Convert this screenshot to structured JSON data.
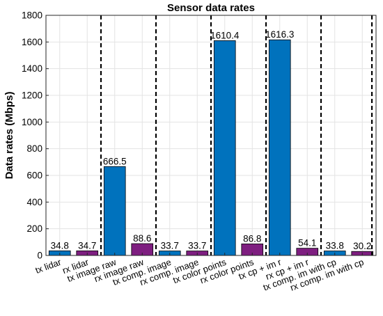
{
  "chart_data": {
    "type": "bar",
    "title": "Sensor data rates",
    "xlabel": "",
    "ylabel": "Data rates (Mbps)",
    "ylim": [
      0,
      1800
    ],
    "yticks": [
      0,
      200,
      400,
      600,
      800,
      1000,
      1200,
      1400,
      1600,
      1800
    ],
    "grid": true,
    "categories": [
      "tx lidar",
      "rx lidar",
      "tx image raw",
      "rx image raw",
      "tx comp. image",
      "rx comp. image",
      "tx color points",
      "rx color points",
      "tx cp + im r",
      "rx cp + im r",
      "tx comp. im with cp",
      "rx comp. im with cp"
    ],
    "values": [
      34.8,
      34.7,
      666.5,
      88.6,
      33.7,
      33.7,
      1610.4,
      86.8,
      1616.3,
      54.1,
      33.8,
      30.2
    ],
    "data_labels": [
      "34.8",
      "34.7",
      "666.5",
      "88.6",
      "33.7",
      "33.7",
      "1610.4",
      "86.8",
      "1616.3",
      "54.1",
      "33.8",
      "30.2"
    ],
    "bar_colors": [
      "#0072BD",
      "#7E1E80",
      "#0072BD",
      "#7E1E80",
      "#0072BD",
      "#7E1E80",
      "#0072BD",
      "#7E1E80",
      "#0072BD",
      "#7E1E80",
      "#0072BD",
      "#7E1E80"
    ],
    "separators_after_categories": [
      "rx lidar",
      "rx image raw",
      "rx comp. image",
      "rx color points",
      "rx cp + im r",
      "rx comp. im with cp"
    ]
  }
}
